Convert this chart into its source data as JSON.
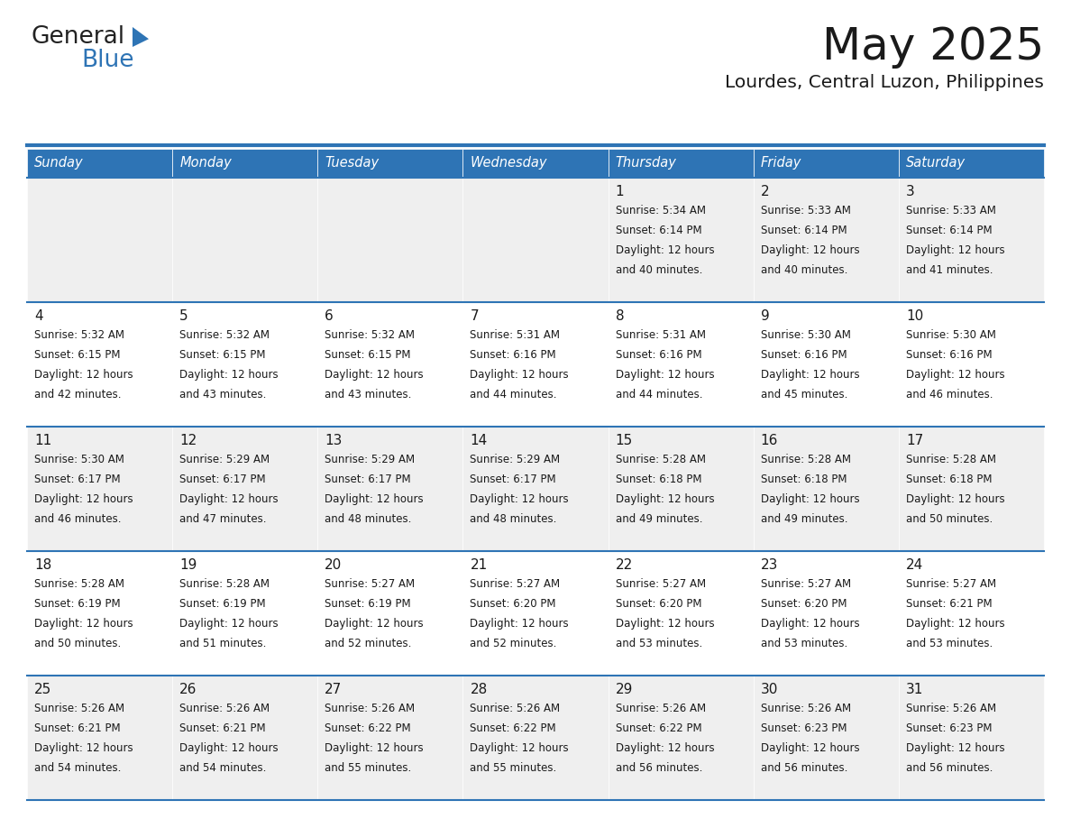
{
  "title": "May 2025",
  "subtitle": "Lourdes, Central Luzon, Philippines",
  "header_bg": "#2E74B5",
  "header_text_color": "#FFFFFF",
  "cell_bg_odd": "#EFEFEF",
  "cell_bg_even": "#FFFFFF",
  "separator_color": "#2E74B5",
  "text_color": "#1a1a1a",
  "days_of_week": [
    "Sunday",
    "Monday",
    "Tuesday",
    "Wednesday",
    "Thursday",
    "Friday",
    "Saturday"
  ],
  "weeks": [
    [
      {
        "day": "",
        "sunrise": "",
        "sunset": "",
        "daylight": ""
      },
      {
        "day": "",
        "sunrise": "",
        "sunset": "",
        "daylight": ""
      },
      {
        "day": "",
        "sunrise": "",
        "sunset": "",
        "daylight": ""
      },
      {
        "day": "",
        "sunrise": "",
        "sunset": "",
        "daylight": ""
      },
      {
        "day": "1",
        "sunrise": "5:34 AM",
        "sunset": "6:14 PM",
        "daylight": "12 hours and 40 minutes."
      },
      {
        "day": "2",
        "sunrise": "5:33 AM",
        "sunset": "6:14 PM",
        "daylight": "12 hours and 40 minutes."
      },
      {
        "day": "3",
        "sunrise": "5:33 AM",
        "sunset": "6:14 PM",
        "daylight": "12 hours and 41 minutes."
      }
    ],
    [
      {
        "day": "4",
        "sunrise": "5:32 AM",
        "sunset": "6:15 PM",
        "daylight": "12 hours and 42 minutes."
      },
      {
        "day": "5",
        "sunrise": "5:32 AM",
        "sunset": "6:15 PM",
        "daylight": "12 hours and 43 minutes."
      },
      {
        "day": "6",
        "sunrise": "5:32 AM",
        "sunset": "6:15 PM",
        "daylight": "12 hours and 43 minutes."
      },
      {
        "day": "7",
        "sunrise": "5:31 AM",
        "sunset": "6:16 PM",
        "daylight": "12 hours and 44 minutes."
      },
      {
        "day": "8",
        "sunrise": "5:31 AM",
        "sunset": "6:16 PM",
        "daylight": "12 hours and 44 minutes."
      },
      {
        "day": "9",
        "sunrise": "5:30 AM",
        "sunset": "6:16 PM",
        "daylight": "12 hours and 45 minutes."
      },
      {
        "day": "10",
        "sunrise": "5:30 AM",
        "sunset": "6:16 PM",
        "daylight": "12 hours and 46 minutes."
      }
    ],
    [
      {
        "day": "11",
        "sunrise": "5:30 AM",
        "sunset": "6:17 PM",
        "daylight": "12 hours and 46 minutes."
      },
      {
        "day": "12",
        "sunrise": "5:29 AM",
        "sunset": "6:17 PM",
        "daylight": "12 hours and 47 minutes."
      },
      {
        "day": "13",
        "sunrise": "5:29 AM",
        "sunset": "6:17 PM",
        "daylight": "12 hours and 48 minutes."
      },
      {
        "day": "14",
        "sunrise": "5:29 AM",
        "sunset": "6:17 PM",
        "daylight": "12 hours and 48 minutes."
      },
      {
        "day": "15",
        "sunrise": "5:28 AM",
        "sunset": "6:18 PM",
        "daylight": "12 hours and 49 minutes."
      },
      {
        "day": "16",
        "sunrise": "5:28 AM",
        "sunset": "6:18 PM",
        "daylight": "12 hours and 49 minutes."
      },
      {
        "day": "17",
        "sunrise": "5:28 AM",
        "sunset": "6:18 PM",
        "daylight": "12 hours and 50 minutes."
      }
    ],
    [
      {
        "day": "18",
        "sunrise": "5:28 AM",
        "sunset": "6:19 PM",
        "daylight": "12 hours and 50 minutes."
      },
      {
        "day": "19",
        "sunrise": "5:28 AM",
        "sunset": "6:19 PM",
        "daylight": "12 hours and 51 minutes."
      },
      {
        "day": "20",
        "sunrise": "5:27 AM",
        "sunset": "6:19 PM",
        "daylight": "12 hours and 52 minutes."
      },
      {
        "day": "21",
        "sunrise": "5:27 AM",
        "sunset": "6:20 PM",
        "daylight": "12 hours and 52 minutes."
      },
      {
        "day": "22",
        "sunrise": "5:27 AM",
        "sunset": "6:20 PM",
        "daylight": "12 hours and 53 minutes."
      },
      {
        "day": "23",
        "sunrise": "5:27 AM",
        "sunset": "6:20 PM",
        "daylight": "12 hours and 53 minutes."
      },
      {
        "day": "24",
        "sunrise": "5:27 AM",
        "sunset": "6:21 PM",
        "daylight": "12 hours and 53 minutes."
      }
    ],
    [
      {
        "day": "25",
        "sunrise": "5:26 AM",
        "sunset": "6:21 PM",
        "daylight": "12 hours and 54 minutes."
      },
      {
        "day": "26",
        "sunrise": "5:26 AM",
        "sunset": "6:21 PM",
        "daylight": "12 hours and 54 minutes."
      },
      {
        "day": "27",
        "sunrise": "5:26 AM",
        "sunset": "6:22 PM",
        "daylight": "12 hours and 55 minutes."
      },
      {
        "day": "28",
        "sunrise": "5:26 AM",
        "sunset": "6:22 PM",
        "daylight": "12 hours and 55 minutes."
      },
      {
        "day": "29",
        "sunrise": "5:26 AM",
        "sunset": "6:22 PM",
        "daylight": "12 hours and 56 minutes."
      },
      {
        "day": "30",
        "sunrise": "5:26 AM",
        "sunset": "6:23 PM",
        "daylight": "12 hours and 56 minutes."
      },
      {
        "day": "31",
        "sunrise": "5:26 AM",
        "sunset": "6:23 PM",
        "daylight": "12 hours and 56 minutes."
      }
    ]
  ],
  "logo_text1": "General",
  "logo_text2": "Blue",
  "logo_text1_color": "#222222",
  "logo_text2_color": "#2E74B5",
  "logo_triangle_color": "#2E74B5",
  "fig_width": 11.88,
  "fig_height": 9.18,
  "fig_dpi": 100
}
